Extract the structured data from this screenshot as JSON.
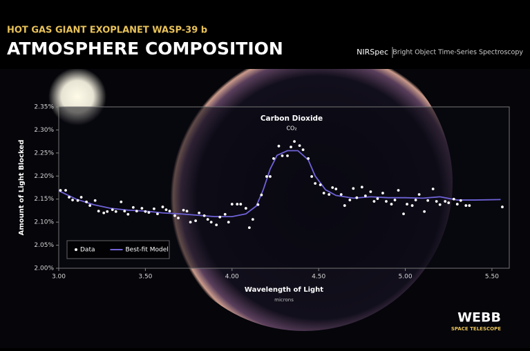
{
  "header": {
    "kicker": "HOT GAS GIANT EXOPLANET WASP-39 b",
    "title": "ATMOSPHERE COMPOSITION",
    "instrument": "NIRSpec",
    "mode": "Bright Object Time-Series Spectroscopy"
  },
  "logo": {
    "name": "WEBB",
    "subtitle": "SPACE TELESCOPE"
  },
  "chart_data": {
    "type": "scatter",
    "xlabel": "Wavelength of Light",
    "xunit": "microns",
    "ylabel": "Amount of Light Blocked",
    "annotations": [
      "Carbon Dioxide",
      "CO₂"
    ],
    "xlim": [
      3.0,
      5.6
    ],
    "ylim": [
      2.0,
      2.35
    ],
    "xticks": [
      {
        "value": 3,
        "label": "3.00"
      },
      {
        "value": 3.5,
        "label": "3.50"
      },
      {
        "value": 4,
        "label": "4.00"
      },
      {
        "value": 4.5,
        "label": "4.50"
      },
      {
        "value": 5,
        "label": "5.00"
      },
      {
        "value": 5.5,
        "label": "5.50"
      }
    ],
    "yticks": [
      {
        "value": 2,
        "label": "2.00%"
      },
      {
        "value": 2.05,
        "label": "2.05%"
      },
      {
        "value": 2.1,
        "label": "2.10%"
      },
      {
        "value": 2.15,
        "label": "2.15%"
      },
      {
        "value": 2.2,
        "label": "2.20%"
      },
      {
        "value": 2.25,
        "label": "2.25%"
      },
      {
        "value": 2.3,
        "label": "2.30%"
      },
      {
        "value": 2.35,
        "label": "2.35%"
      }
    ],
    "legend": "lower left",
    "series": [
      {
        "name": "Data",
        "color": "#ffffff",
        "style": "points",
        "x": [
          3.01,
          3.04,
          3.06,
          3.08,
          3.11,
          3.13,
          3.16,
          3.18,
          3.21,
          3.23,
          3.26,
          3.28,
          3.31,
          3.33,
          3.36,
          3.38,
          3.4,
          3.43,
          3.45,
          3.48,
          3.5,
          3.52,
          3.55,
          3.57,
          3.6,
          3.62,
          3.64,
          3.67,
          3.69,
          3.72,
          3.74,
          3.76,
          3.79,
          3.81,
          3.84,
          3.86,
          3.88,
          3.91,
          3.93,
          3.96,
          3.98,
          4.0,
          4.03,
          4.05,
          4.08,
          4.1,
          4.12,
          4.15,
          4.17,
          4.2,
          4.22,
          4.24,
          4.27,
          4.29,
          4.32,
          4.34,
          4.36,
          4.39,
          4.41,
          4.44,
          4.46,
          4.48,
          4.51,
          4.53,
          4.56,
          4.58,
          4.6,
          4.63,
          4.65,
          4.68,
          4.7,
          4.72,
          4.75,
          4.77,
          4.8,
          4.82,
          4.84,
          4.87,
          4.89,
          4.92,
          4.94,
          4.96,
          4.99,
          5.01,
          5.04,
          5.06,
          5.08,
          5.11,
          5.13,
          5.16,
          5.18,
          5.2,
          5.23,
          5.25,
          5.28,
          5.3,
          5.32,
          5.35,
          5.37,
          5.56
        ],
        "values": [
          2.169,
          2.169,
          2.154,
          2.148,
          2.147,
          2.154,
          2.144,
          2.136,
          2.147,
          2.124,
          2.12,
          2.123,
          2.127,
          2.123,
          2.144,
          2.124,
          2.117,
          2.132,
          2.124,
          2.13,
          2.123,
          2.121,
          2.129,
          2.118,
          2.133,
          2.127,
          2.124,
          2.114,
          2.109,
          2.126,
          2.124,
          2.1,
          2.103,
          2.12,
          2.114,
          2.106,
          2.1,
          2.094,
          2.111,
          2.117,
          2.1,
          2.139,
          2.139,
          2.139,
          2.13,
          2.088,
          2.106,
          2.138,
          2.159,
          2.199,
          2.199,
          2.238,
          2.265,
          2.244,
          2.244,
          2.263,
          2.275,
          2.266,
          2.257,
          2.238,
          2.199,
          2.184,
          2.181,
          2.163,
          2.16,
          2.175,
          2.172,
          2.16,
          2.136,
          2.148,
          2.173,
          2.153,
          2.176,
          2.157,
          2.166,
          2.145,
          2.151,
          2.163,
          2.145,
          2.139,
          2.148,
          2.169,
          2.118,
          2.139,
          2.136,
          2.148,
          2.16,
          2.123,
          2.147,
          2.172,
          2.145,
          2.138,
          2.145,
          2.142,
          2.15,
          2.139,
          2.147,
          2.136,
          2.136,
          2.133
        ]
      },
      {
        "name": "Best-fit Model",
        "color": "#6f63d8",
        "style": "line",
        "x": [
          3.0,
          3.1,
          3.2,
          3.3,
          3.4,
          3.5,
          3.6,
          3.7,
          3.8,
          3.9,
          4.0,
          4.08,
          4.14,
          4.18,
          4.22,
          4.26,
          4.32,
          4.38,
          4.44,
          4.48,
          4.54,
          4.6,
          4.7,
          4.8,
          4.9,
          5.0,
          5.1,
          5.2,
          5.3,
          5.4,
          5.55
        ],
        "values": [
          2.168,
          2.15,
          2.138,
          2.13,
          2.126,
          2.124,
          2.12,
          2.118,
          2.115,
          2.112,
          2.112,
          2.118,
          2.135,
          2.17,
          2.215,
          2.245,
          2.255,
          2.255,
          2.235,
          2.2,
          2.17,
          2.158,
          2.152,
          2.155,
          2.153,
          2.153,
          2.152,
          2.155,
          2.148,
          2.148,
          2.149
        ]
      }
    ]
  }
}
